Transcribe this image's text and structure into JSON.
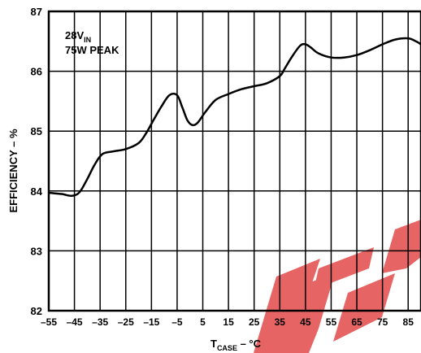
{
  "chart_data": {
    "type": "line",
    "ylabel": "EFFICIENCY – %",
    "xlabel_main": "T",
    "xlabel_sub": "CASE",
    "xlabel_tail": " – °C",
    "annotation_line1_main": "28V",
    "annotation_line1_sub": "IN",
    "annotation_line2": "75W PEAK",
    "x_ticks": [
      "–55",
      "–45",
      "–35",
      "–25",
      "–15",
      "–5",
      "5",
      "15",
      "25",
      "35",
      "45",
      "55",
      "65",
      "75",
      "85"
    ],
    "y_ticks": [
      "82",
      "83",
      "84",
      "85",
      "86",
      "87"
    ],
    "xlim": [
      -55,
      90
    ],
    "ylim": [
      82,
      87
    ],
    "grid": true,
    "series": [
      {
        "x": [
          -55,
          -50,
          -46,
          -43,
          -40,
          -37,
          -34,
          -30,
          -25,
          -20,
          -17,
          -14,
          -11,
          -8,
          -5,
          -3,
          -1,
          1,
          3,
          6,
          10,
          15,
          20,
          25,
          30,
          35,
          37,
          40,
          43,
          45,
          47,
          50,
          55,
          60,
          65,
          70,
          75,
          80,
          85,
          88,
          90
        ],
        "y": [
          83.97,
          83.95,
          83.92,
          83.98,
          84.2,
          84.45,
          84.62,
          84.66,
          84.7,
          84.8,
          84.97,
          85.2,
          85.42,
          85.6,
          85.6,
          85.4,
          85.18,
          85.1,
          85.14,
          85.32,
          85.52,
          85.62,
          85.7,
          85.75,
          85.8,
          85.92,
          86.05,
          86.26,
          86.43,
          86.45,
          86.4,
          86.3,
          86.23,
          86.23,
          86.27,
          86.35,
          86.45,
          86.53,
          86.55,
          86.5,
          86.45
        ],
        "color": "#000000"
      }
    ]
  }
}
